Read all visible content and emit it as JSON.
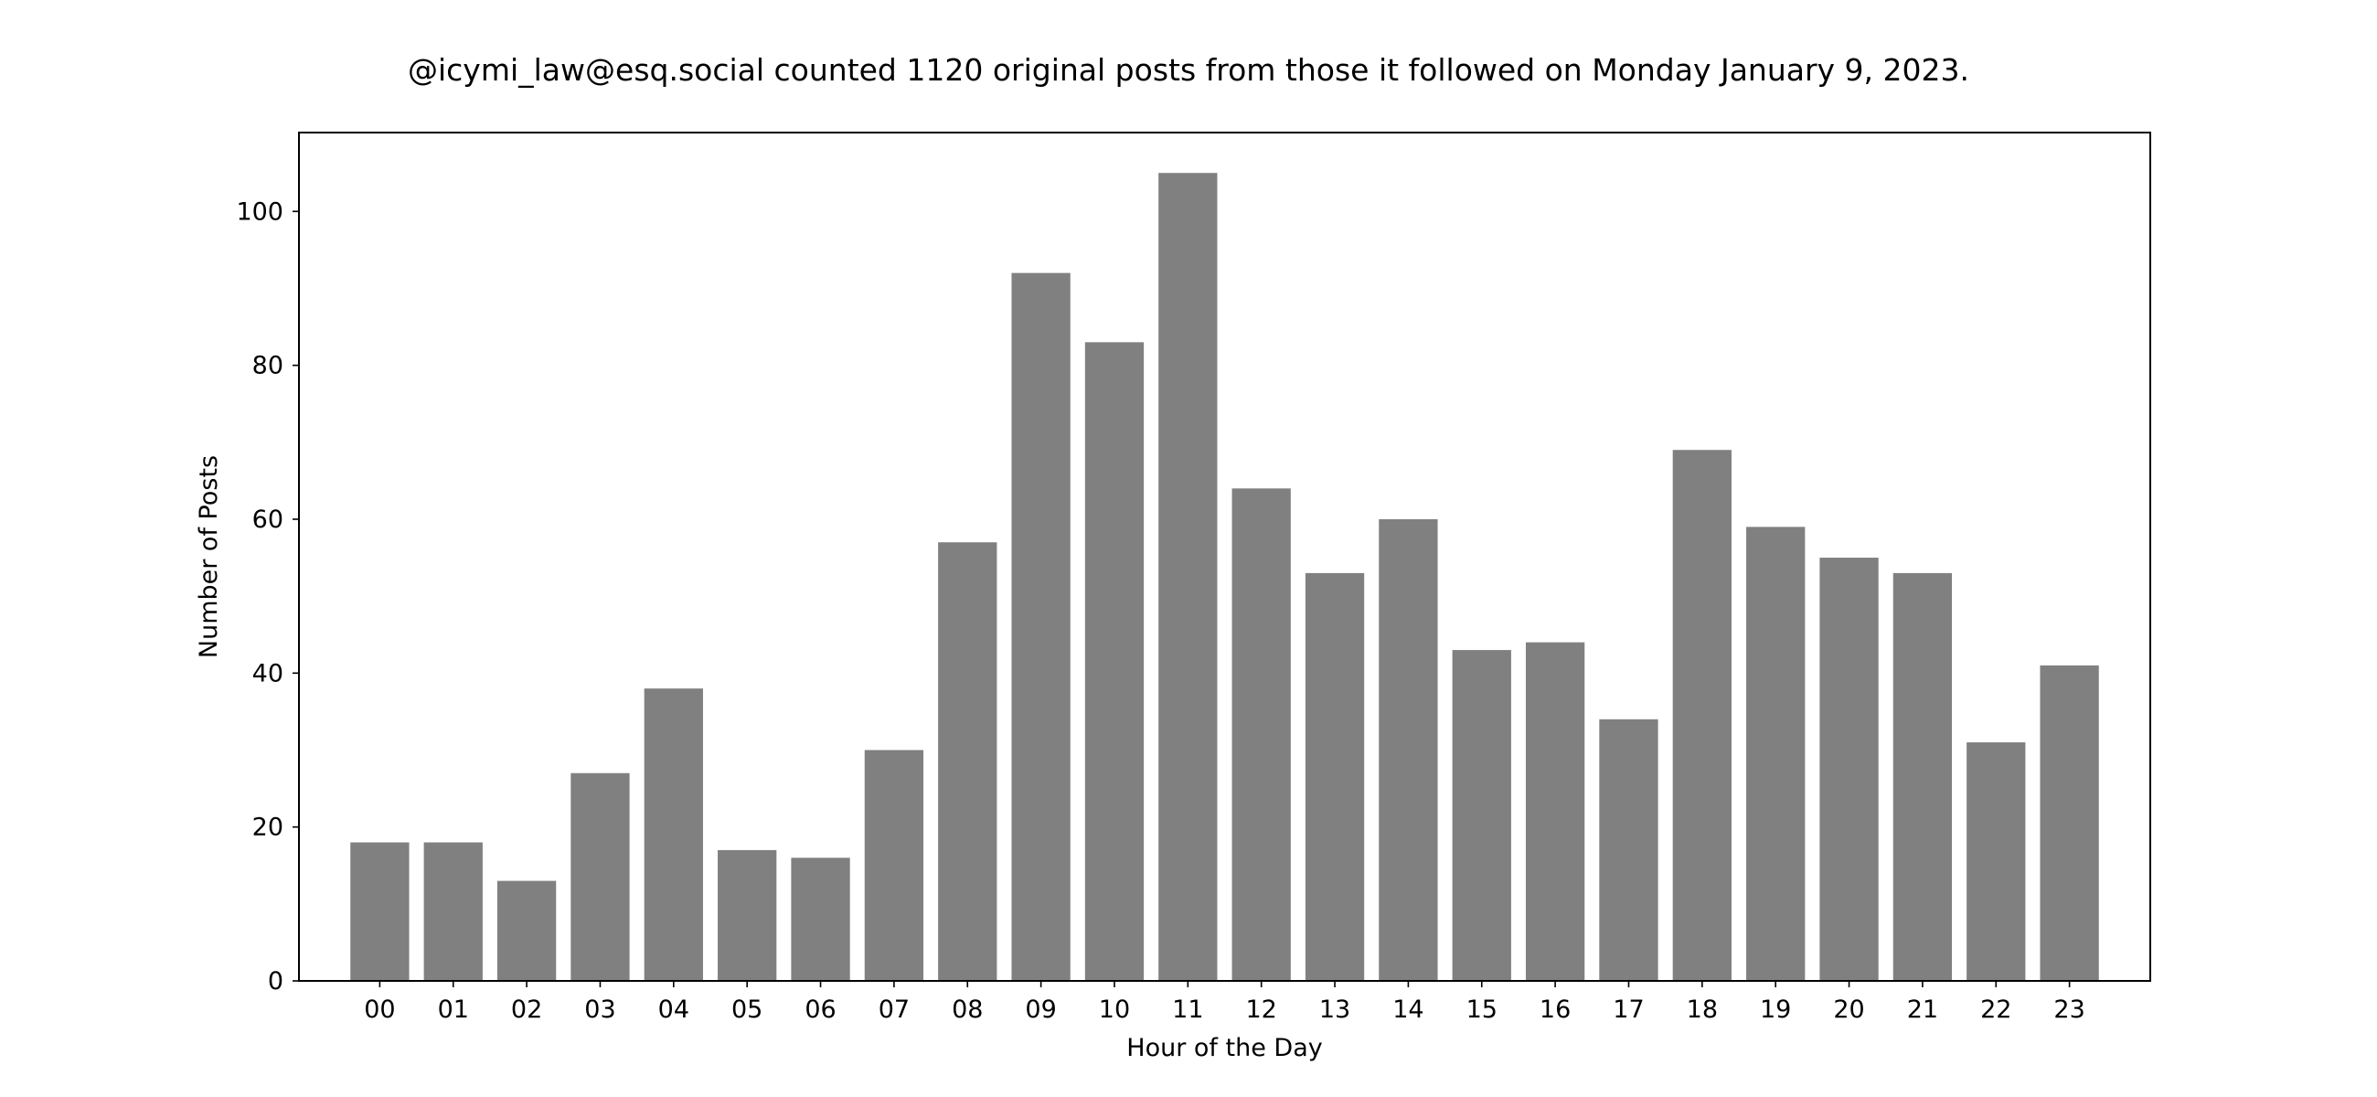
{
  "chart_data": {
    "type": "bar",
    "title": "@icymi_law@esq.social counted 1120 original posts from those it followed on Monday January 9, 2023.",
    "xlabel": "Hour of the Day",
    "ylabel": "Number of Posts",
    "categories": [
      "00",
      "01",
      "02",
      "03",
      "04",
      "05",
      "06",
      "07",
      "08",
      "09",
      "10",
      "11",
      "12",
      "13",
      "14",
      "15",
      "16",
      "17",
      "18",
      "19",
      "20",
      "21",
      "22",
      "23"
    ],
    "values": [
      18,
      18,
      13,
      27,
      38,
      17,
      16,
      30,
      57,
      92,
      83,
      105,
      64,
      53,
      60,
      43,
      44,
      34,
      69,
      59,
      55,
      53,
      31,
      41
    ],
    "ylim": [
      0,
      110.25
    ],
    "yticks": [
      0,
      20,
      40,
      60,
      80,
      100
    ],
    "grid": false,
    "bar_color": "#808080"
  }
}
